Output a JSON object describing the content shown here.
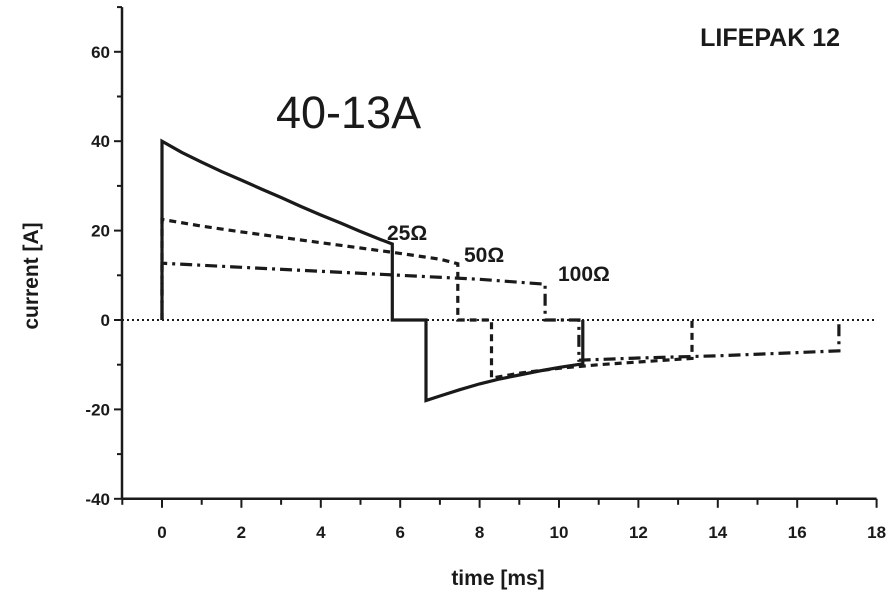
{
  "chart_data": {
    "type": "line",
    "title": "LIFEPAK 12",
    "annotation": "40-13A",
    "xlabel": "time [ms]",
    "ylabel": "current [A]",
    "xlim": [
      -1,
      18
    ],
    "ylim": [
      -40,
      70
    ],
    "x_ticks": [
      "0",
      "2",
      "4",
      "6",
      "8",
      "10",
      "12",
      "14",
      "16",
      "18"
    ],
    "y_ticks": [
      "60",
      "40",
      "20",
      "0",
      "-20",
      "-40"
    ],
    "grid": false,
    "zero_line": "dotted",
    "series": [
      {
        "name": "25Ω",
        "line_style": "solid",
        "points": [
          [
            0,
            0
          ],
          [
            0,
            40
          ],
          [
            0.5,
            37.5
          ],
          [
            1,
            35.3
          ],
          [
            1.5,
            33.2
          ],
          [
            2,
            31.3
          ],
          [
            2.5,
            29.3
          ],
          [
            3,
            27.4
          ],
          [
            3.5,
            25.4
          ],
          [
            4,
            23.5
          ],
          [
            4.5,
            21.7
          ],
          [
            5,
            19.8
          ],
          [
            5.5,
            18
          ],
          [
            5.8,
            17
          ],
          [
            5.8,
            0
          ],
          [
            6.65,
            0
          ],
          [
            6.65,
            -18
          ],
          [
            7,
            -17
          ],
          [
            7.5,
            -15.6
          ],
          [
            8,
            -14.3
          ],
          [
            8.5,
            -13.2
          ],
          [
            9,
            -12.3
          ],
          [
            9.5,
            -11.4
          ],
          [
            10,
            -10.6
          ],
          [
            10.6,
            -9.8
          ],
          [
            10.6,
            0
          ]
        ]
      },
      {
        "name": "50Ω",
        "line_style": "dashed",
        "points": [
          [
            0,
            0
          ],
          [
            0,
            22.5
          ],
          [
            1,
            21
          ],
          [
            2,
            19.7
          ],
          [
            3,
            18.5
          ],
          [
            4,
            17.3
          ],
          [
            5,
            16.1
          ],
          [
            6,
            14.9
          ],
          [
            7,
            13.6
          ],
          [
            7.45,
            12.6
          ],
          [
            7.45,
            0
          ],
          [
            8.3,
            0
          ],
          [
            8.3,
            -13
          ],
          [
            9,
            -11.9
          ],
          [
            10,
            -10.8
          ],
          [
            11,
            -10
          ],
          [
            12,
            -9.4
          ],
          [
            13,
            -8.8
          ],
          [
            13.35,
            -8.6
          ],
          [
            13.35,
            0
          ]
        ]
      },
      {
        "name": "100Ω",
        "line_style": "dash-dot",
        "points": [
          [
            0,
            0
          ],
          [
            0,
            12.7
          ],
          [
            2,
            11.8
          ],
          [
            4,
            10.9
          ],
          [
            6,
            10
          ],
          [
            8,
            9.1
          ],
          [
            9.65,
            8
          ],
          [
            9.65,
            0
          ],
          [
            10.5,
            0
          ],
          [
            10.5,
            -9
          ],
          [
            12,
            -8.5
          ],
          [
            14,
            -8
          ],
          [
            16,
            -7.3
          ],
          [
            17.05,
            -6.9
          ],
          [
            17.05,
            0
          ]
        ]
      }
    ]
  }
}
